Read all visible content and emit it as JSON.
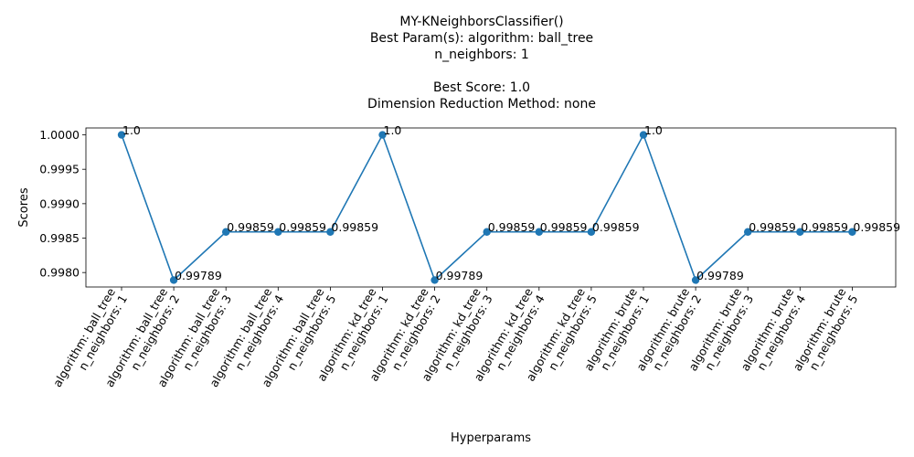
{
  "chart_data": {
    "type": "line",
    "title_lines": [
      "MY-KNeighborsClassifier()",
      "Best Param(s): algorithm: ball_tree",
      "n_neighbors: 1",
      "",
      "Best Score: 1.0",
      "Dimension Reduction Method: none"
    ],
    "xlabel": "Hyperparams",
    "ylabel": "Scores",
    "ylim": [
      0.99779,
      1.0001
    ],
    "yticks": [
      "0.9980",
      "0.9985",
      "0.9990",
      "0.9995",
      "1.0000"
    ],
    "categories": [
      [
        "algorithm: ball_tree",
        "n_neighbors: 1"
      ],
      [
        "algorithm: ball_tree",
        "n_neighbors: 2"
      ],
      [
        "algorithm: ball_tree",
        "n_neighbors: 3"
      ],
      [
        "algorithm: ball_tree",
        "n_neighbors: 4"
      ],
      [
        "algorithm: ball_tree",
        "n_neighbors: 5"
      ],
      [
        "algorithm: kd_tree",
        "n_neighbors: 1"
      ],
      [
        "algorithm: kd_tree",
        "n_neighbors: 2"
      ],
      [
        "algorithm: kd_tree",
        "n_neighbors: 3"
      ],
      [
        "algorithm: kd_tree",
        "n_neighbors: 4"
      ],
      [
        "algorithm: kd_tree",
        "n_neighbors: 5"
      ],
      [
        "algorithm: brute",
        "n_neighbors: 1"
      ],
      [
        "algorithm: brute",
        "n_neighbors: 2"
      ],
      [
        "algorithm: brute",
        "n_neighbors: 3"
      ],
      [
        "algorithm: brute",
        "n_neighbors: 4"
      ],
      [
        "algorithm: brute",
        "n_neighbors: 5"
      ]
    ],
    "values": [
      1.0,
      0.99789,
      0.99859,
      0.99859,
      0.99859,
      1.0,
      0.99789,
      0.99859,
      0.99859,
      0.99859,
      1.0,
      0.99789,
      0.99859,
      0.99859,
      0.99859
    ],
    "point_labels": [
      "1.0",
      "0.99789",
      "0.99859",
      "0.99859",
      "0.99859",
      "1.0",
      "0.99789",
      "0.99859",
      "0.99859",
      "0.99859",
      "1.0",
      "0.99789",
      "0.99859",
      "0.99859",
      "0.99859"
    ],
    "colors": {
      "series": "#1f77b4"
    },
    "grid": false,
    "legend": "none"
  }
}
